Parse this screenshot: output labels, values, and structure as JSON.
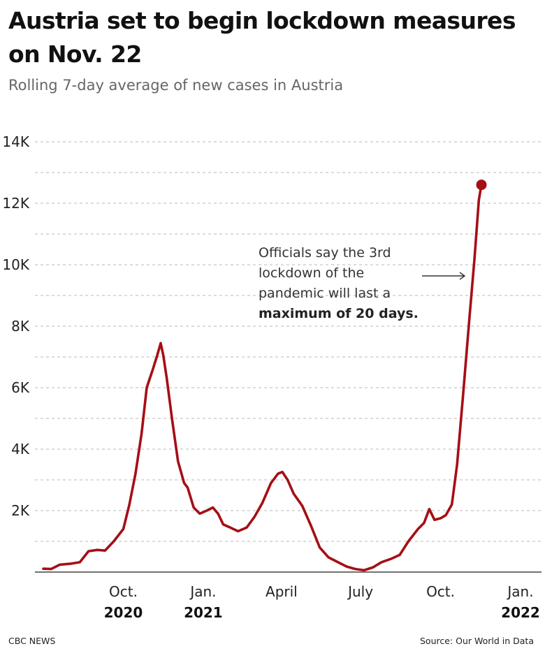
{
  "header": {
    "title": "Austria set to begin lockdown measures on Nov. 22",
    "subtitle": "Rolling 7-day average of new cases in Austria"
  },
  "footer": {
    "credit": "CBC NEWS",
    "source": "Source: Our World in Data"
  },
  "colors": {
    "line": "#a50f15",
    "grid": "#b8b8b8",
    "axis": "#444444"
  },
  "chart_data": {
    "type": "line",
    "title": "Austria set to begin lockdown measures on Nov. 22",
    "subtitle": "Rolling 7-day average of new cases in Austria",
    "xlabel": "",
    "ylabel": "",
    "x_range": [
      "2020-07-01",
      "2022-01-01"
    ],
    "ylim": [
      0,
      14000
    ],
    "grid": true,
    "y_ticks": [
      {
        "value": 2000,
        "label": "2K"
      },
      {
        "value": 4000,
        "label": "4K"
      },
      {
        "value": 6000,
        "label": "6K"
      },
      {
        "value": 8000,
        "label": "8K"
      },
      {
        "value": 10000,
        "label": "10K"
      },
      {
        "value": 12000,
        "label": "12K"
      },
      {
        "value": 14000,
        "label": "14K"
      }
    ],
    "x_ticks": [
      {
        "date": "2020-10-01",
        "label": "Oct.",
        "year": "2020"
      },
      {
        "date": "2021-01-01",
        "label": "Jan.",
        "year": "2021"
      },
      {
        "date": "2021-04-01",
        "label": "April",
        "year": ""
      },
      {
        "date": "2021-07-01",
        "label": "July",
        "year": ""
      },
      {
        "date": "2021-10-01",
        "label": "Oct.",
        "year": ""
      },
      {
        "date": "2022-01-01",
        "label": "Jan.",
        "year": "2022"
      }
    ],
    "series": [
      {
        "name": "",
        "points": [
          [
            "2020-07-01",
            110
          ],
          [
            "2020-07-10",
            100
          ],
          [
            "2020-07-20",
            240
          ],
          [
            "2020-08-01",
            270
          ],
          [
            "2020-08-12",
            320
          ],
          [
            "2020-08-22",
            680
          ],
          [
            "2020-09-01",
            720
          ],
          [
            "2020-09-10",
            700
          ],
          [
            "2020-09-20",
            1000
          ],
          [
            "2020-10-01",
            1400
          ],
          [
            "2020-10-08",
            2200
          ],
          [
            "2020-10-15",
            3200
          ],
          [
            "2020-10-22",
            4500
          ],
          [
            "2020-10-28",
            6000
          ],
          [
            "2020-11-04",
            6600
          ],
          [
            "2020-11-09",
            7050
          ],
          [
            "2020-11-13",
            7450
          ],
          [
            "2020-11-16",
            7050
          ],
          [
            "2020-11-20",
            6300
          ],
          [
            "2020-11-26",
            5000
          ],
          [
            "2020-12-03",
            3600
          ],
          [
            "2020-12-10",
            2900
          ],
          [
            "2020-12-14",
            2750
          ],
          [
            "2020-12-21",
            2100
          ],
          [
            "2020-12-28",
            1900
          ],
          [
            "2021-01-05",
            2000
          ],
          [
            "2021-01-12",
            2100
          ],
          [
            "2021-01-18",
            1900
          ],
          [
            "2021-01-24",
            1550
          ],
          [
            "2021-02-01",
            1450
          ],
          [
            "2021-02-10",
            1330
          ],
          [
            "2021-02-20",
            1450
          ],
          [
            "2021-03-01",
            1800
          ],
          [
            "2021-03-10",
            2250
          ],
          [
            "2021-03-20",
            2900
          ],
          [
            "2021-03-28",
            3200
          ],
          [
            "2021-04-02",
            3260
          ],
          [
            "2021-04-08",
            3000
          ],
          [
            "2021-04-15",
            2550
          ],
          [
            "2021-04-25",
            2150
          ],
          [
            "2021-05-05",
            1500
          ],
          [
            "2021-05-15",
            800
          ],
          [
            "2021-05-25",
            480
          ],
          [
            "2021-06-05",
            320
          ],
          [
            "2021-06-15",
            180
          ],
          [
            "2021-06-25",
            100
          ],
          [
            "2021-07-05",
            60
          ],
          [
            "2021-07-15",
            150
          ],
          [
            "2021-07-25",
            320
          ],
          [
            "2021-08-05",
            430
          ],
          [
            "2021-08-15",
            560
          ],
          [
            "2021-08-25",
            1000
          ],
          [
            "2021-09-05",
            1400
          ],
          [
            "2021-09-12",
            1600
          ],
          [
            "2021-09-18",
            2050
          ],
          [
            "2021-09-24",
            1700
          ],
          [
            "2021-10-01",
            1750
          ],
          [
            "2021-10-07",
            1850
          ],
          [
            "2021-10-14",
            2200
          ],
          [
            "2021-10-20",
            3500
          ],
          [
            "2021-10-27",
            5800
          ],
          [
            "2021-11-03",
            8200
          ],
          [
            "2021-11-09",
            10200
          ],
          [
            "2021-11-14",
            12100
          ],
          [
            "2021-11-17",
            12600
          ]
        ]
      }
    ],
    "last_point": {
      "date": "2021-11-17",
      "value": 12600
    },
    "annotation": {
      "lines": [
        "Officials say the 3rd",
        "lockdown of the",
        "pandemic will last a"
      ],
      "bold": "maximum of 20 days."
    }
  }
}
